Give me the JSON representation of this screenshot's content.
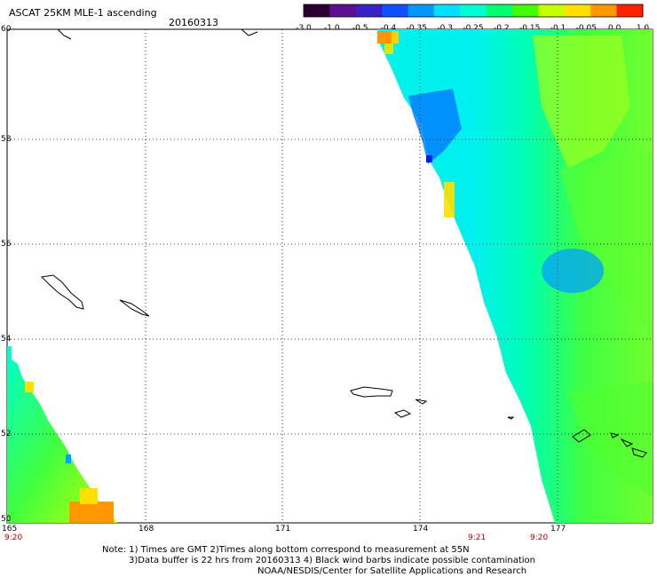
{
  "title": "ASCAT 25KM MLE-1 ascending",
  "date": "20160313",
  "colorbar": {
    "labels": [
      "-3.0",
      "-1.0",
      "-0.5",
      "-0.4",
      "-0.35",
      "-0.3",
      "-0.25",
      "-0.2",
      "-0.15",
      "-0.1",
      "-0.05",
      "0.0",
      "1.0"
    ],
    "colors": [
      "#2a0030",
      "#5a1090",
      "#3a20c8",
      "#1050ff",
      "#0098ff",
      "#00e0ff",
      "#00ffd0",
      "#00ff70",
      "#40ff00",
      "#c8ff00",
      "#ffe000",
      "#ff9800",
      "#ff2000"
    ]
  },
  "axes": {
    "lat_ticks": [
      "60",
      "58",
      "56",
      "54",
      "52",
      "50"
    ],
    "lon_ticks": [
      "165",
      "168",
      "171",
      "174",
      "177"
    ]
  },
  "times": [
    "9:20",
    "9:21",
    "9:20"
  ],
  "footnote": {
    "line1": "Note: 1) Times are GMT 2)Times along bottom correspond to measurement at 55N",
    "line2": "3)Data buffer is 22 hrs from 20160313 4) Black wind barbs indicate possible contamination",
    "line3": "NOAA/NESDIS/Center for Satellite Applications and Research"
  },
  "icons": {
    "coastline": "island-outline-icon"
  }
}
